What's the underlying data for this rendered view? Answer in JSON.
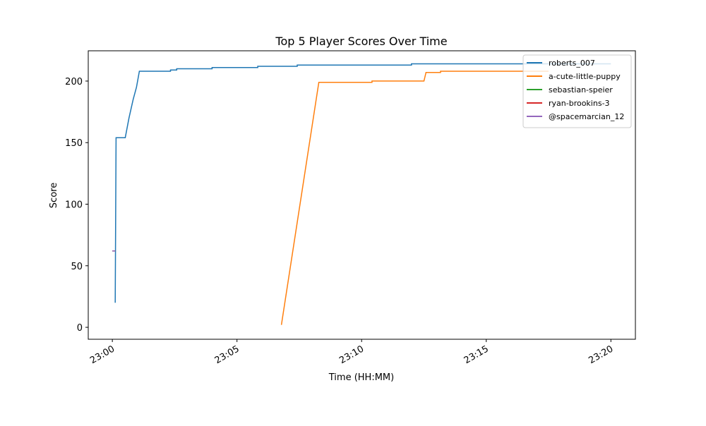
{
  "chart_data": {
    "type": "line",
    "title": "Top 5 Player Scores Over Time",
    "x_label": "Time (HH:MM)",
    "y_label": "Score",
    "xlim": [
      "22:59:02",
      "23:20:59"
    ],
    "ylim": [
      -9.7,
      224.6
    ],
    "xticks": [
      "23:00",
      "23:05",
      "23:10",
      "23:15",
      "23:20"
    ],
    "yticks": [
      0,
      50,
      100,
      150,
      200
    ],
    "legend": "upper right",
    "series": [
      {
        "name": "roberts_007",
        "color": "#1f77b4",
        "x": [
          "23:00:07",
          "23:00:09",
          "23:00:31",
          "23:00:40",
          "23:00:50",
          "23:00:58",
          "23:01:05",
          "23:02:20",
          "23:02:20",
          "23:02:35",
          "23:02:35",
          "23:04:00",
          "23:04:00",
          "23:05:50",
          "23:05:50",
          "23:07:25",
          "23:07:25",
          "23:12:00",
          "23:12:00",
          "23:20:00"
        ],
        "values": [
          20,
          154,
          154,
          170,
          185,
          195,
          208,
          208,
          209,
          209,
          210,
          210,
          211,
          211,
          212,
          212,
          213,
          213,
          214,
          214
        ]
      },
      {
        "name": "a-cute-little-puppy",
        "color": "#ff7f0e",
        "x": [
          "23:06:47",
          "23:08:17",
          "23:10:25",
          "23:10:25",
          "23:12:30",
          "23:12:35",
          "23:13:10",
          "23:13:10",
          "23:17:30"
        ],
        "values": [
          2,
          199,
          199,
          200,
          200,
          207,
          207,
          208,
          208
        ]
      },
      {
        "name": "sebastian-speier",
        "color": "#2ca02c",
        "x": [
          "23:00:00",
          "23:00:07"
        ],
        "values": [
          62,
          62
        ]
      },
      {
        "name": "ryan-brookins-3",
        "color": "#d62728",
        "x": [
          "23:00:00",
          "23:00:07"
        ],
        "values": [
          62,
          62
        ]
      },
      {
        "name": "@spacemarcian_12",
        "color": "#9467bd",
        "x": [
          "23:00:00",
          "23:00:07"
        ],
        "values": [
          62,
          62
        ]
      }
    ]
  }
}
